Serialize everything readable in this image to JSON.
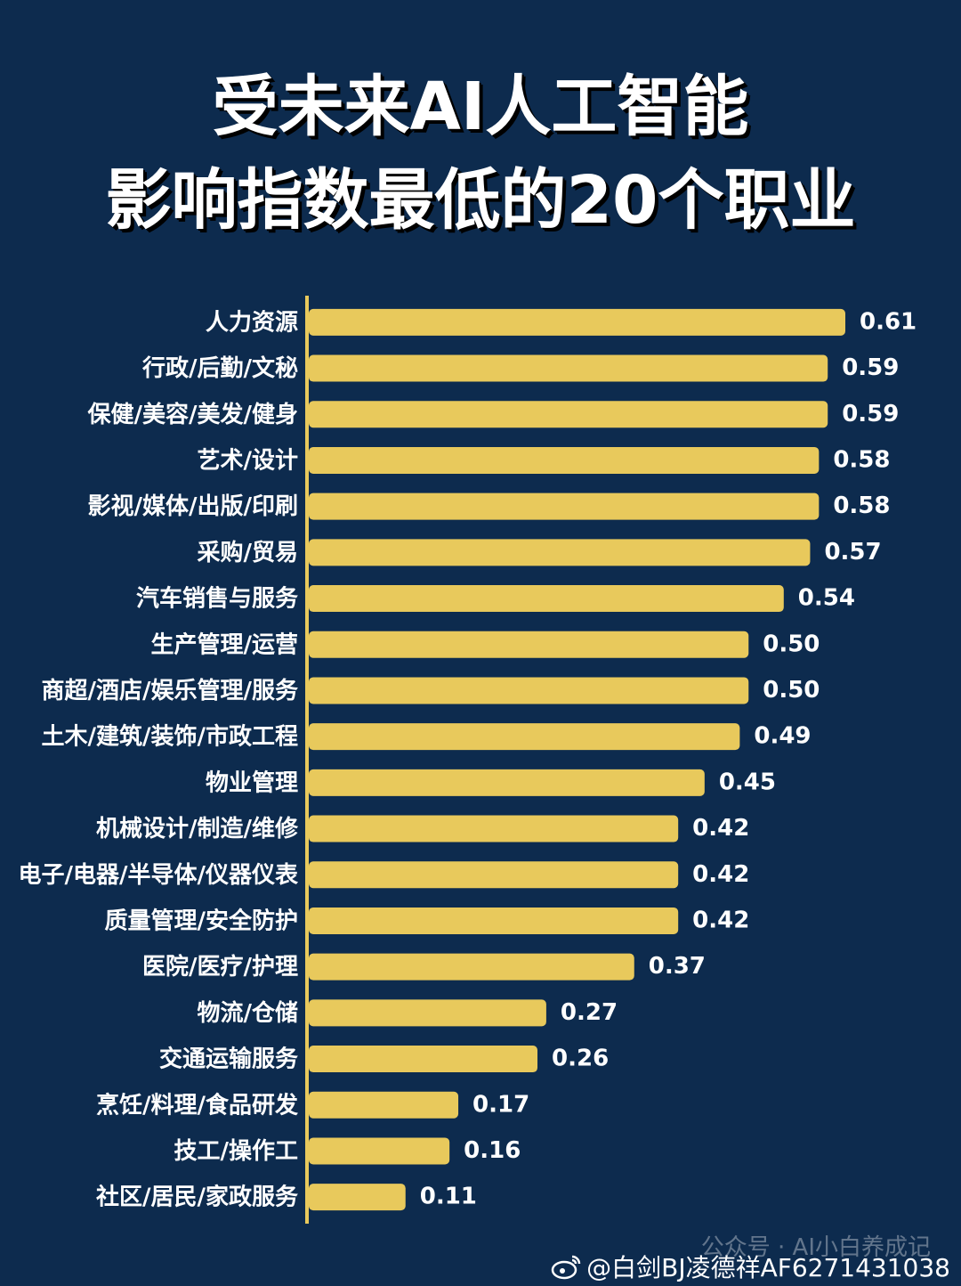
{
  "title": {
    "line1": "受未来AI人工智能",
    "line2": "影响指数最低的20个职业"
  },
  "chart_data": {
    "type": "bar",
    "orientation": "horizontal",
    "categories": [
      "人力资源",
      "行政/后勤/文秘",
      "保健/美容/美发/健身",
      "艺术/设计",
      "影视/媒体/出版/印刷",
      "采购/贸易",
      "汽车销售与服务",
      "生产管理/运营",
      "商超/酒店/娱乐管理/服务",
      "土木/建筑/装饰/市政工程",
      "物业管理",
      "机械设计/制造/维修",
      "电子/电器/半导体/仪器仪表",
      "质量管理/安全防护",
      "医院/医疗/护理",
      "物流/仓储",
      "交通运输服务",
      "烹饪/料理/食品研发",
      "技工/操作工",
      "社区/居民/家政服务"
    ],
    "values": [
      0.61,
      0.59,
      0.59,
      0.58,
      0.58,
      0.57,
      0.54,
      0.5,
      0.5,
      0.49,
      0.45,
      0.42,
      0.42,
      0.42,
      0.37,
      0.27,
      0.26,
      0.17,
      0.16,
      0.11
    ],
    "value_labels": [
      "0.61",
      "0.59",
      "0.59",
      "0.58",
      "0.58",
      "0.57",
      "0.54",
      "0.50",
      "0.50",
      "0.49",
      "0.45",
      "0.42",
      "0.42",
      "0.42",
      "0.37",
      "0.27",
      "0.26",
      "0.17",
      "0.16",
      "0.11"
    ],
    "xlim": [
      0,
      0.61
    ],
    "grid": false,
    "colors": {
      "background": "#0d2b4e",
      "bar": "#e8c95c",
      "axis": "#e8c95c",
      "text": "#ffffff"
    }
  },
  "watermarks": {
    "wechat": "公众号 · AI小白养成记",
    "weibo": "@白剑BJ凌德祥AF6271431038",
    "weibo_icon": "weibo-icon"
  }
}
